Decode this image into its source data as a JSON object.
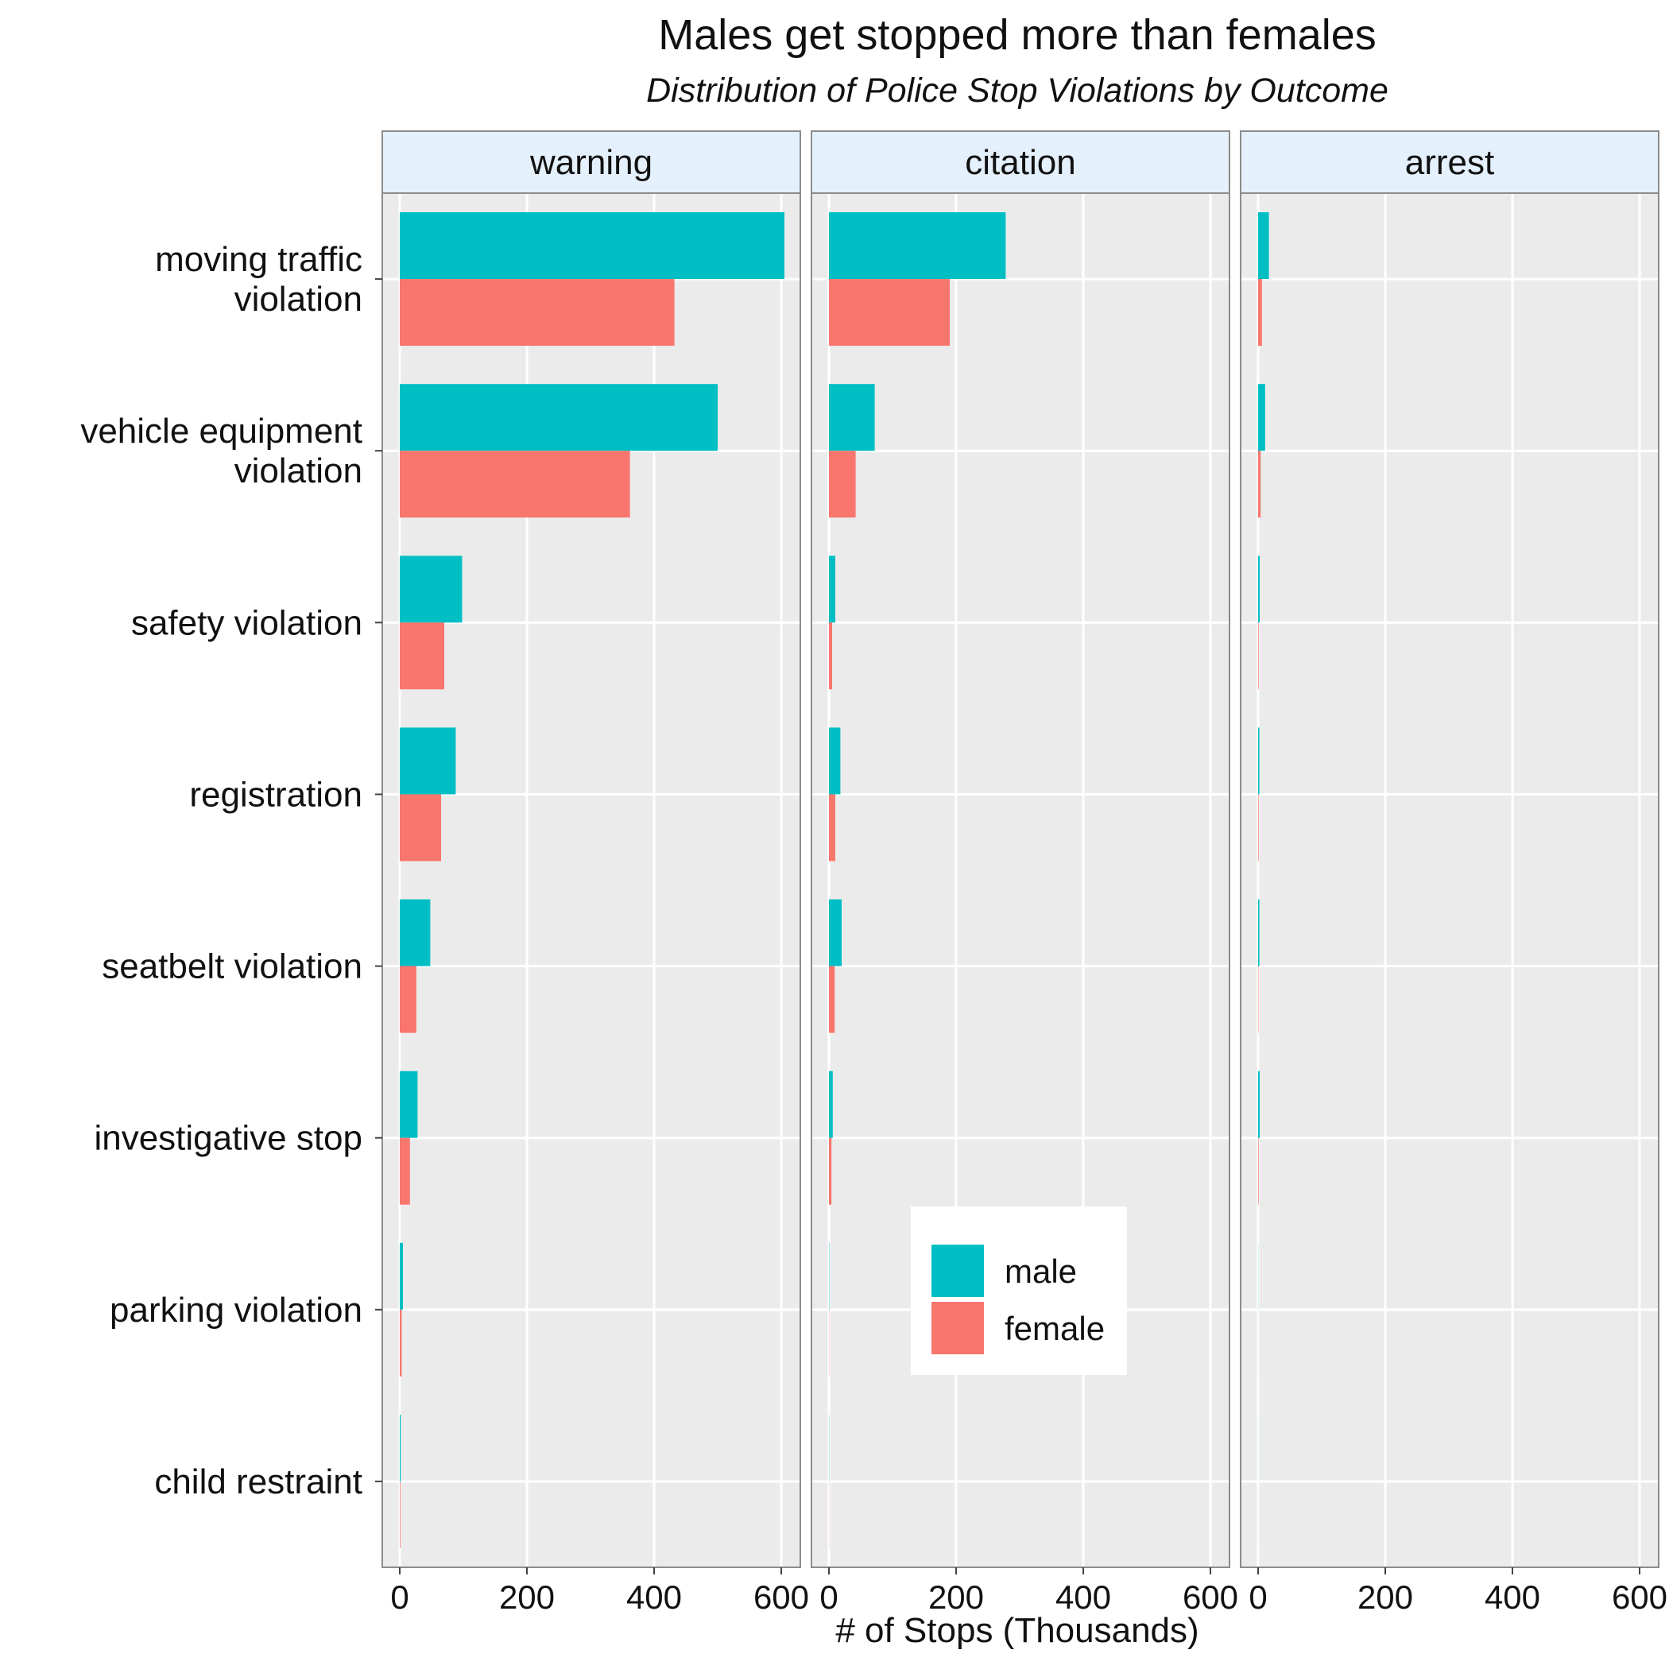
{
  "chart_data": {
    "type": "bar",
    "orientation": "horizontal",
    "title": "Males get stopped more than females",
    "subtitle": "Distribution of Police Stop Violations by Outcome",
    "xlabel": "# of Stops (Thousands)",
    "ylabel": "",
    "xlim": [
      0,
      600
    ],
    "xticks": [
      "0",
      "200",
      "400",
      "600"
    ],
    "grid": true,
    "legend_position": "inside-bottom-center",
    "categories": [
      [
        "moving traffic",
        "violation"
      ],
      [
        "vehicle equipment",
        "violation"
      ],
      [
        "safety violation"
      ],
      [
        "registration"
      ],
      [
        "seatbelt violation"
      ],
      [
        "investigative stop"
      ],
      [
        "parking violation"
      ],
      [
        "child restraint"
      ]
    ],
    "series_order": [
      "male",
      "female"
    ],
    "series_colors": {
      "male": "#00BFC4",
      "female": "#F8766D"
    },
    "panels": [
      {
        "label": "warning",
        "series": [
          {
            "name": "male",
            "values": [
              605,
              500,
              98,
              88,
              48,
              28,
              5,
              1.5
            ]
          },
          {
            "name": "female",
            "values": [
              432,
              362,
              70,
              65,
              26,
              16,
              3,
              1
            ]
          }
        ]
      },
      {
        "label": "citation",
        "series": [
          {
            "name": "male",
            "values": [
              278,
              72,
              10,
              18,
              20,
              6,
              0.5,
              0.3
            ]
          },
          {
            "name": "female",
            "values": [
              190,
              42,
              5,
              10,
              9,
              4,
              0.3,
              0.2
            ]
          }
        ]
      },
      {
        "label": "arrest",
        "series": [
          {
            "name": "male",
            "values": [
              17,
              11,
              2.5,
              2,
              2,
              2.5,
              0.2,
              0.1
            ]
          },
          {
            "name": "female",
            "values": [
              6,
              4,
              0.8,
              0.8,
              0.6,
              0.8,
              0.1,
              0.05
            ]
          }
        ]
      }
    ]
  }
}
